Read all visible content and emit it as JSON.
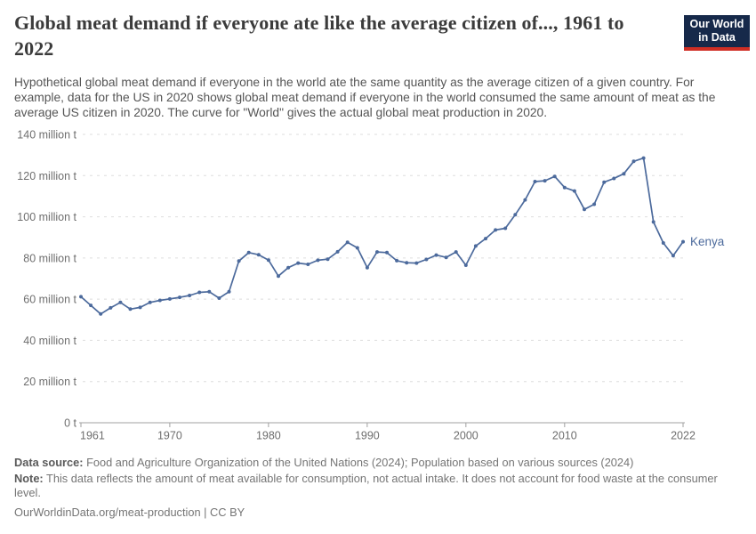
{
  "header": {
    "title": "Global meat demand if everyone ate like the average citizen of..., 1961 to 2022",
    "subtitle": "Hypothetical global meat demand if everyone in the world ate the same quantity as the average citizen of a given country. For example, data for the US in 2020 shows global meat demand if everyone in the world consumed the same amount of meat as the average US citizen in 2020. The curve for \"World\" gives the actual global meat production in 2020.",
    "logo": {
      "line1": "Our World",
      "line2": "in Data",
      "bg_color": "#16294a",
      "bar_color": "#cf2e24"
    }
  },
  "chart_data": {
    "type": "line",
    "title": "Global meat demand if everyone ate like the average citizen of..., 1961 to 2022",
    "xlabel": "",
    "ylabel": "",
    "unit": "million t",
    "xlim": [
      1961,
      2022
    ],
    "ylim": [
      0,
      140
    ],
    "grid": "horizontal-dashed",
    "legend_position": "end-of-line",
    "end_label": "Kenya",
    "x_ticks": [
      1961,
      1970,
      1980,
      1990,
      2000,
      2010,
      2022
    ],
    "y_ticks": [
      {
        "value": 0,
        "label": "0 t"
      },
      {
        "value": 20,
        "label": "20 million t"
      },
      {
        "value": 40,
        "label": "40 million t"
      },
      {
        "value": 60,
        "label": "60 million t"
      },
      {
        "value": 80,
        "label": "80 million t"
      },
      {
        "value": 100,
        "label": "100 million t"
      },
      {
        "value": 120,
        "label": "120 million t"
      },
      {
        "value": 140,
        "label": "140 million t"
      }
    ],
    "years": [
      1961,
      1962,
      1963,
      1964,
      1965,
      1966,
      1967,
      1968,
      1969,
      1970,
      1971,
      1972,
      1973,
      1974,
      1975,
      1976,
      1977,
      1978,
      1979,
      1980,
      1981,
      1982,
      1983,
      1984,
      1985,
      1986,
      1987,
      1988,
      1989,
      1990,
      1991,
      1992,
      1993,
      1994,
      1995,
      1996,
      1997,
      1998,
      1999,
      2000,
      2001,
      2002,
      2003,
      2004,
      2005,
      2006,
      2007,
      2008,
      2009,
      2010,
      2011,
      2012,
      2013,
      2014,
      2015,
      2016,
      2017,
      2018,
      2019,
      2020,
      2021,
      2022
    ],
    "series": [
      {
        "name": "Kenya",
        "color": "#4c6a9c",
        "values": [
          61.2,
          57.0,
          52.8,
          55.8,
          58.4,
          55.2,
          56.0,
          58.4,
          59.4,
          60.1,
          60.9,
          61.8,
          63.3,
          63.6,
          60.5,
          63.6,
          78.5,
          82.6,
          81.6,
          79.0,
          71.2,
          75.3,
          77.5,
          76.9,
          78.9,
          79.4,
          83.0,
          87.6,
          84.9,
          75.3,
          82.9,
          82.6,
          78.7,
          77.7,
          77.5,
          79.3,
          81.4,
          80.3,
          82.9,
          76.5,
          85.8,
          89.4,
          93.6,
          94.4,
          101.0,
          108.2,
          117.1,
          117.5,
          119.6,
          114.2,
          112.5,
          103.6,
          106.1,
          116.8,
          118.6,
          120.9,
          126.9,
          128.5,
          97.5,
          87.3,
          81.1,
          87.9
        ]
      }
    ]
  },
  "footer": {
    "data_source_label": "Data source:",
    "data_source": " Food and Agriculture Organization of the United Nations (2024); Population based on various sources (2024)",
    "note_label": "Note:",
    "note": " This data reflects the amount of meat available for consumption, not actual intake. It does not account for food waste at the consumer level.",
    "credit_url": "OurWorldinData.org/meat-production",
    "credit_separator": " | ",
    "credit_license": "CC BY"
  }
}
